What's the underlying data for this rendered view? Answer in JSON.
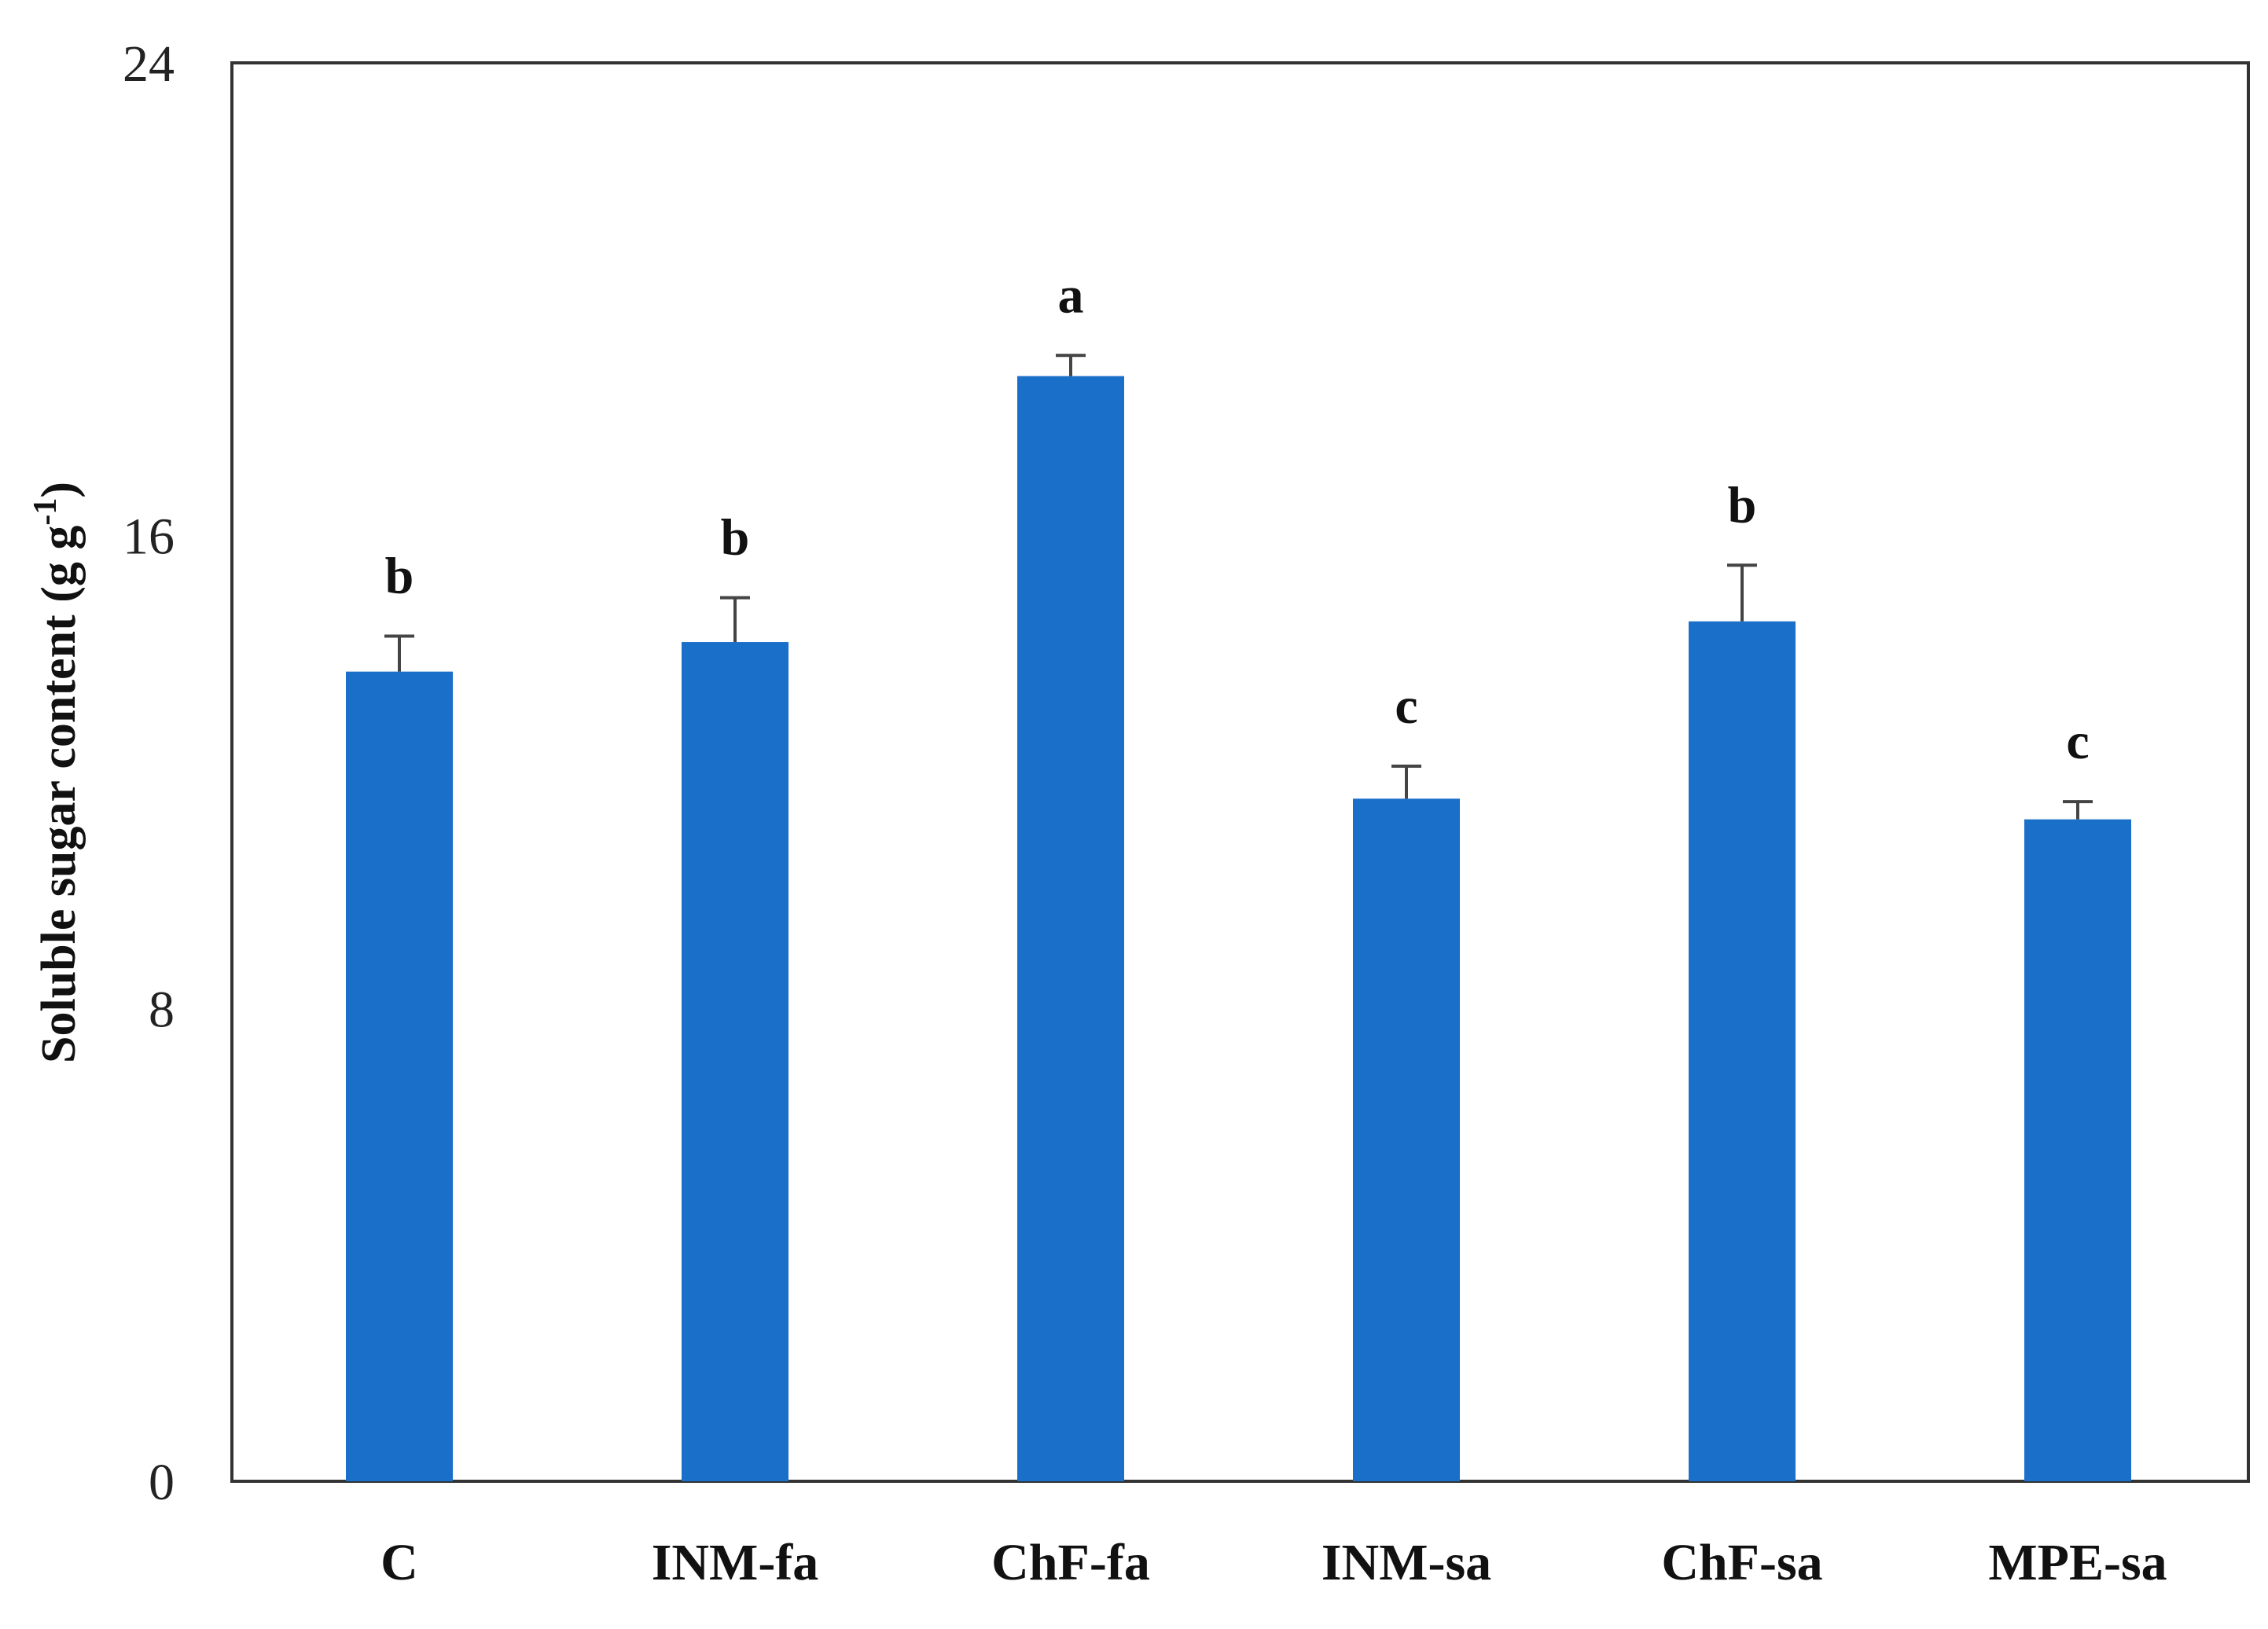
{
  "chart_data": {
    "type": "bar",
    "categories": [
      "C",
      "INM-fa",
      "ChF-fa",
      "INM-sa",
      "ChF-sa",
      "MPE-sa"
    ],
    "values": [
      13.7,
      14.2,
      18.7,
      11.55,
      14.55,
      11.2
    ],
    "errors": [
      0.6,
      0.75,
      0.35,
      0.55,
      0.95,
      0.3
    ],
    "significance": [
      "b",
      "b",
      "a",
      "c",
      "b",
      "c"
    ],
    "ylabel": "Soluble  sugar content (g g",
    "ylabel_superscript": "-1",
    "ylabel_suffix": ")",
    "yticks": [
      "0",
      "8",
      "16",
      "24"
    ],
    "ylim": [
      0,
      24
    ],
    "bar_color": "#1a6fc9",
    "grid": false,
    "legend": "none"
  }
}
